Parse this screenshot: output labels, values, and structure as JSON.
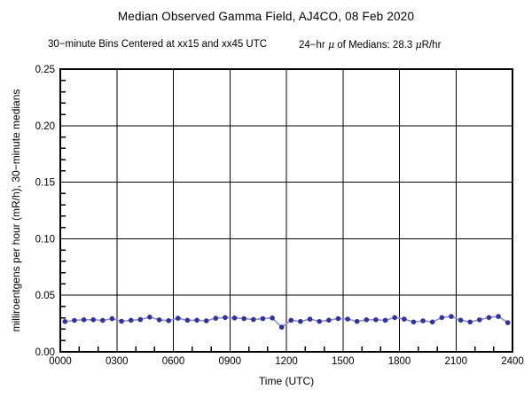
{
  "header": {
    "title": "Median Observed Gamma Field, AJ4CO, 08 Feb 2020",
    "subtitle_bins": "30−minute Bins Centered at xx15 and xx45 UTC",
    "mean": {
      "pre": "24−hr ",
      "mu1": "μ",
      "mid": " of Medians: 28.3 ",
      "mu2": "μ",
      "post": "R/hr"
    }
  },
  "chart_data": {
    "type": "line",
    "title": "Median Observed Gamma Field, AJ4CO, 08 Feb 2020",
    "subtitle": "30−minute Bins Centered at xx15 and xx45 UTC    24−hr μ of Medians: 28.3 μR/hr",
    "xlabel": "Time (UTC)",
    "ylabel": "milliroentgens per hour (mR/h), 30−minute medians",
    "xlim": [
      0,
      24
    ],
    "ylim": [
      0,
      0.25
    ],
    "grid": true,
    "legend": "none",
    "mean_uR_hr": 28.3,
    "x_major_ticks": [
      0,
      3,
      6,
      9,
      12,
      15,
      18,
      21,
      24
    ],
    "x_tick_labels": [
      "0000",
      "0300",
      "0600",
      "0900",
      "1200",
      "1500",
      "1800",
      "2100",
      "2400"
    ],
    "x_minor_step_hours": 1,
    "y_major_ticks": [
      0,
      0.05,
      0.1,
      0.15,
      0.2,
      0.25
    ],
    "y_tick_labels": [
      "0.00",
      "0.05",
      "0.10",
      "0.15",
      "0.20",
      "0.25"
    ],
    "y_minor_step": 0.01,
    "line_color": "#8d8dcf",
    "marker_color": "#32329a",
    "times": [
      "0015",
      "0045",
      "0115",
      "0145",
      "0215",
      "0245",
      "0315",
      "0345",
      "0415",
      "0445",
      "0515",
      "0545",
      "0615",
      "0645",
      "0715",
      "0745",
      "0815",
      "0845",
      "0915",
      "0945",
      "1015",
      "1045",
      "1115",
      "1145",
      "1215",
      "1245",
      "1315",
      "1345",
      "1415",
      "1445",
      "1515",
      "1545",
      "1615",
      "1645",
      "1715",
      "1745",
      "1815",
      "1845",
      "1915",
      "1945",
      "2015",
      "2045",
      "2115",
      "2145",
      "2215",
      "2245",
      "2315",
      "2345"
    ],
    "x_hours": [
      0.25,
      0.75,
      1.25,
      1.75,
      2.25,
      2.75,
      3.25,
      3.75,
      4.25,
      4.75,
      5.25,
      5.75,
      6.25,
      6.75,
      7.25,
      7.75,
      8.25,
      8.75,
      9.25,
      9.75,
      10.25,
      10.75,
      11.25,
      11.75,
      12.25,
      12.75,
      13.25,
      13.75,
      14.25,
      14.75,
      15.25,
      15.75,
      16.25,
      16.75,
      17.25,
      17.75,
      18.25,
      18.75,
      19.25,
      19.75,
      20.25,
      20.75,
      21.25,
      21.75,
      22.25,
      22.75,
      23.25,
      23.75
    ],
    "values": [
      0.0268,
      0.0278,
      0.0284,
      0.0284,
      0.0278,
      0.0293,
      0.027,
      0.0279,
      0.0285,
      0.0307,
      0.0283,
      0.0276,
      0.0297,
      0.0279,
      0.028,
      0.0274,
      0.0297,
      0.0303,
      0.0299,
      0.0294,
      0.0285,
      0.0294,
      0.0299,
      0.0218,
      0.0279,
      0.0269,
      0.0289,
      0.0269,
      0.028,
      0.0294,
      0.029,
      0.0269,
      0.0284,
      0.0284,
      0.0279,
      0.0303,
      0.0289,
      0.0264,
      0.0274,
      0.0264,
      0.0303,
      0.0313,
      0.028,
      0.0264,
      0.0283,
      0.0303,
      0.0313,
      0.0258
    ]
  }
}
